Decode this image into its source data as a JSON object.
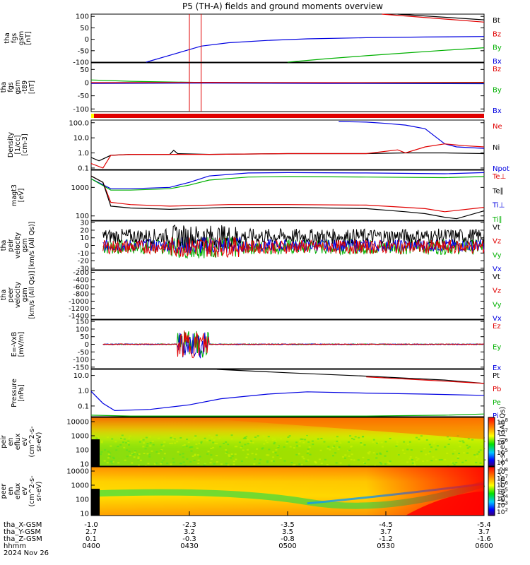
{
  "chart_data": {
    "type": "line",
    "title": "P5 (TH-A) fields and ground moments overview",
    "time_ticks": [
      "0400",
      "0430",
      "0500",
      "0530",
      "0600"
    ],
    "panels": [
      {
        "id": "fgs",
        "ylabel": [
          "tha",
          "fgs",
          "gsm",
          "[nT]"
        ],
        "yticks": [
          "100",
          "50",
          "0",
          "-50",
          "-100"
        ],
        "ylim": [
          -100,
          110
        ],
        "legend": [
          {
            "name": "Bt",
            "color": "#000000"
          },
          {
            "name": "Bz",
            "color": "#e00000"
          },
          {
            "name": "By",
            "color": "#00b000"
          },
          {
            "name": "Bx",
            "color": "#0000e0"
          }
        ],
        "series": [
          {
            "name": "Bt",
            "color": "#000000",
            "x": [
              0.78,
              1.0
            ],
            "y": [
              110,
              85
            ]
          },
          {
            "name": "Bz",
            "color": "#e00000",
            "x": [
              0.74,
              1.0
            ],
            "y": [
              110,
              75
            ]
          },
          {
            "name": "By",
            "color": "#00b000",
            "x": [
              0.5,
              0.6,
              0.7,
              0.8,
              0.9,
              1.0
            ],
            "y": [
              -100,
              -85,
              -72,
              -60,
              -48,
              -37
            ]
          },
          {
            "name": "Bx",
            "color": "#0000e0",
            "x": [
              0.14,
              0.2,
              0.25,
              0.28,
              0.35,
              0.45,
              0.55,
              0.7,
              0.85,
              1.0
            ],
            "y": [
              -100,
              -70,
              -45,
              -30,
              -15,
              -5,
              2,
              7,
              10,
              12
            ]
          }
        ]
      },
      {
        "id": "fgs_dsl",
        "ylabel": [
          "tha",
          "fgs",
          "gsm",
          "-t89",
          "[nT]"
        ],
        "yticks": [
          "50",
          "0",
          "-50",
          "-100"
        ],
        "ylim": [
          -110,
          75
        ],
        "legend": [
          {
            "name": "Bz",
            "color": "#e00000"
          },
          {
            "name": "By",
            "color": "#00b000"
          },
          {
            "name": "Bx",
            "color": "#0000e0"
          }
        ],
        "series": [
          {
            "name": "By",
            "color": "#00b000",
            "x": [
              0.0,
              0.1,
              0.3,
              0.6,
              1.0
            ],
            "y": [
              10,
              5,
              0,
              -1,
              -2
            ]
          },
          {
            "name": "Bx",
            "color": "#0000e0",
            "x": [
              0.0,
              0.3,
              0.6,
              1.0
            ],
            "y": [
              -3,
              -2,
              -3,
              -4
            ]
          },
          {
            "name": "Bz",
            "color": "#e00000",
            "x": [
              0.0,
              0.3,
              0.6,
              1.0
            ],
            "y": [
              0,
              1,
              0,
              1
            ]
          }
        ]
      },
      {
        "id": "density",
        "ylabel": [
          "Density",
          "[1/cc]",
          "[cm-3]"
        ],
        "yticks": [
          "100.0",
          "10.0",
          "1.0",
          "0.1"
        ],
        "log": true,
        "ylim": [
          0.08,
          150
        ],
        "legend": [
          {
            "name": "Ne",
            "color": "#e00000"
          },
          {
            "name": "Ni",
            "color": "#000000"
          },
          {
            "name": "Npot",
            "color": "#0000e0"
          }
        ],
        "series": [
          {
            "name": "Npot",
            "color": "#0000e0",
            "x": [
              0.63,
              0.7,
              0.75,
              0.8,
              0.85,
              0.88,
              0.9,
              0.93,
              1.0
            ],
            "y": [
              120,
              110,
              90,
              70,
              40,
              10,
              4,
              2.5,
              2
            ]
          },
          {
            "name": "Ni",
            "color": "#000000",
            "x": [
              0.0,
              0.02,
              0.05,
              0.1,
              0.2,
              0.21,
              0.22,
              0.3,
              0.5,
              0.7,
              0.8,
              0.9,
              1.0
            ],
            "y": [
              0.5,
              0.3,
              0.7,
              0.8,
              0.8,
              1.5,
              0.9,
              0.8,
              0.9,
              0.9,
              1.0,
              1.0,
              0.9
            ]
          },
          {
            "name": "Ne",
            "color": "#e00000",
            "x": [
              0.0,
              0.03,
              0.05,
              0.1,
              0.3,
              0.5,
              0.7,
              0.78,
              0.8,
              0.85,
              0.9,
              0.95,
              1.0
            ],
            "y": [
              0.2,
              0.1,
              0.7,
              0.8,
              0.8,
              0.9,
              0.9,
              1.6,
              1.0,
              2.5,
              4,
              3,
              2.5
            ]
          }
        ]
      },
      {
        "id": "temp",
        "ylabel": [
          "magt3",
          "[eV]"
        ],
        "yticks": [
          "1000",
          "100"
        ],
        "log": true,
        "ylim": [
          70,
          4000
        ],
        "legend": [
          {
            "name": "Te⊥",
            "color": "#e00000"
          },
          {
            "name": "Te∥",
            "color": "#000000"
          },
          {
            "name": "Ti⊥",
            "color": "#0000e0"
          },
          {
            "name": "Ti∥",
            "color": "#00b000"
          }
        ],
        "series": [
          {
            "name": "Ti⊥",
            "color": "#0000e0",
            "x": [
              0.0,
              0.05,
              0.1,
              0.2,
              0.25,
              0.3,
              0.4,
              0.5,
              0.7,
              0.9,
              1.0
            ],
            "y": [
              2000,
              900,
              900,
              1000,
              1500,
              2500,
              3200,
              3300,
              3200,
              3000,
              3300
            ]
          },
          {
            "name": "Ti∥",
            "color": "#00b000",
            "x": [
              0.0,
              0.05,
              0.1,
              0.2,
              0.25,
              0.3,
              0.4,
              0.5,
              0.7,
              0.9,
              1.0
            ],
            "y": [
              2000,
              800,
              800,
              900,
              1200,
              1800,
              2300,
              2400,
              2300,
              2200,
              2400
            ]
          },
          {
            "name": "Te⊥",
            "color": "#e00000",
            "x": [
              0.0,
              0.03,
              0.05,
              0.1,
              0.2,
              0.35,
              0.5,
              0.7,
              0.8,
              0.85,
              0.9,
              1.0
            ],
            "y": [
              2500,
              1500,
              300,
              250,
              220,
              250,
              250,
              240,
              200,
              180,
              140,
              200
            ]
          },
          {
            "name": "Te∥",
            "color": "#000000",
            "x": [
              0.0,
              0.03,
              0.05,
              0.1,
              0.2,
              0.35,
              0.5,
              0.7,
              0.8,
              0.85,
              0.9,
              0.93,
              1.0
            ],
            "y": [
              2500,
              1500,
              220,
              190,
              170,
              200,
              200,
              180,
              140,
              120,
              90,
              80,
              150
            ]
          }
        ]
      },
      {
        "id": "velocity_peir",
        "ylabel": [
          "tha",
          "peir",
          "velocity",
          "gsm",
          "[km/s (All Qs)]"
        ],
        "yticks": [
          "30",
          "20",
          "10",
          "0",
          "-10",
          "-20",
          "-30"
        ],
        "ylim": [
          -32,
          32
        ],
        "legend": [
          {
            "name": "Vt",
            "color": "#000000"
          },
          {
            "name": "Vz",
            "color": "#e00000"
          },
          {
            "name": "Vy",
            "color": "#00b000"
          },
          {
            "name": "Vx",
            "color": "#0000e0"
          }
        ],
        "noise": [
          {
            "name": "Vy",
            "color": "#00b000",
            "center": -2,
            "amp": 10
          },
          {
            "name": "Vx",
            "color": "#0000e0",
            "center": 0,
            "amp": 8
          },
          {
            "name": "Vt",
            "color": "#000000",
            "center": 12,
            "amp": 10
          },
          {
            "name": "Vz",
            "color": "#e00000",
            "center": -2,
            "amp": 9
          }
        ]
      },
      {
        "id": "velocity_peer",
        "ylabel": [
          "tha",
          "peer",
          "velocity",
          "gsm",
          "[km/s (All Qs)]"
        ],
        "yticks": [
          "-200",
          "-400",
          "-600",
          "-800",
          "-1000",
          "-1200",
          "-1400"
        ],
        "ylim": [
          -1500,
          -150
        ],
        "legend": [
          {
            "name": "Vt",
            "color": "#000000"
          },
          {
            "name": "Vz",
            "color": "#e00000"
          },
          {
            "name": "Vy",
            "color": "#00b000"
          },
          {
            "name": "Vx",
            "color": "#0000e0"
          }
        ],
        "series": []
      },
      {
        "id": "efield",
        "ylabel": [
          "E=-VxB",
          "[mV/m]"
        ],
        "yticks": [
          "150",
          "100",
          "50",
          "0",
          "-50",
          "-100",
          "-150"
        ],
        "ylim": [
          -160,
          160
        ],
        "legend": [
          {
            "name": "Ez",
            "color": "#e00000"
          },
          {
            "name": "Ey",
            "color": "#00b000"
          },
          {
            "name": "Ex",
            "color": "#0000e0"
          }
        ],
        "noise": [
          {
            "name": "Ey",
            "color": "#00b000",
            "center": 0,
            "amp": 3
          },
          {
            "name": "Ex",
            "color": "#0000e0",
            "center": 0,
            "amp": 3
          },
          {
            "name": "Ez",
            "color": "#e00000",
            "center": 0,
            "amp": 3
          }
        ]
      },
      {
        "id": "pressure",
        "ylabel": [
          "Pressure",
          "[nPa]"
        ],
        "yticks": [
          "10.0",
          "1.0",
          "0.1"
        ],
        "log": true,
        "ylim": [
          0.02,
          25
        ],
        "legend": [
          {
            "name": "Pt",
            "color": "#000000"
          },
          {
            "name": "Pb",
            "color": "#e00000"
          },
          {
            "name": "Pe",
            "color": "#00b000"
          },
          {
            "name": "Pi",
            "color": "#0000e0"
          }
        ],
        "series": [
          {
            "name": "Pt",
            "color": "#000000",
            "x": [
              0.32,
              0.5,
              0.7,
              0.9,
              1.0
            ],
            "y": [
              25,
              15,
              9,
              5,
              3
            ]
          },
          {
            "name": "Pb",
            "color": "#e00000",
            "x": [
              0.7,
              0.85,
              1.0
            ],
            "y": [
              8,
              5,
              3
            ]
          },
          {
            "name": "Pi",
            "color": "#0000e0",
            "x": [
              0.0,
              0.03,
              0.06,
              0.15,
              0.25,
              0.33,
              0.45,
              0.55,
              0.7,
              0.85,
              1.0
            ],
            "y": [
              0.9,
              0.15,
              0.05,
              0.06,
              0.12,
              0.3,
              0.6,
              0.85,
              0.7,
              0.6,
              0.5
            ]
          },
          {
            "name": "Pe",
            "color": "#00b000",
            "x": [
              0.0,
              0.1,
              0.3,
              0.5,
              0.7,
              0.9,
              1.0
            ],
            "y": [
              0.025,
              0.022,
              0.022,
              0.022,
              0.022,
              0.025,
              0.03
            ]
          }
        ]
      },
      {
        "id": "peir_spec",
        "type": "heatmap",
        "ylabel": [
          "tha",
          "peir",
          "en",
          "eflux",
          "eV",
          "(cm^2-s-",
          "sr-eV)"
        ],
        "yticks": [
          "10000",
          "1000",
          "100",
          "10"
        ],
        "colorbar_ticks": [
          "10^8",
          "10^7",
          "10^6",
          "10^5",
          "10^4"
        ]
      },
      {
        "id": "peer_spec",
        "type": "heatmap",
        "ylabel": [
          "tha",
          "peer",
          "en",
          "eflux",
          "eV",
          "(cm^2-s-",
          "sr-eV)"
        ],
        "yticks": [
          "10000",
          "1000",
          "100",
          "10"
        ],
        "colorbar_ticks": [
          "10^8",
          "10^7",
          "10^6",
          "10^5",
          "10^4",
          "10^3",
          "10^2"
        ]
      }
    ],
    "colorbar_label": "[eV/(cm^2-s-sr-eV)]  (All Qs)",
    "x_axis_rows": [
      {
        "label": "tha_X-GSM",
        "values": [
          "-1.0",
          "-2.3",
          "-3.5",
          "-4.5",
          "-5.4"
        ]
      },
      {
        "label": "tha_Y-GSM",
        "values": [
          "2.7",
          "3.2",
          "3.5",
          "3.7",
          "3.7"
        ]
      },
      {
        "label": "tha_Z-GSM",
        "values": [
          "0.1",
          "-0.3",
          "-0.8",
          "-1.2",
          "-1.6"
        ]
      },
      {
        "label": "hhmm",
        "values": [
          "0400",
          "0430",
          "0500",
          "0530",
          "0600"
        ]
      }
    ],
    "date": "2024 Nov 26"
  }
}
